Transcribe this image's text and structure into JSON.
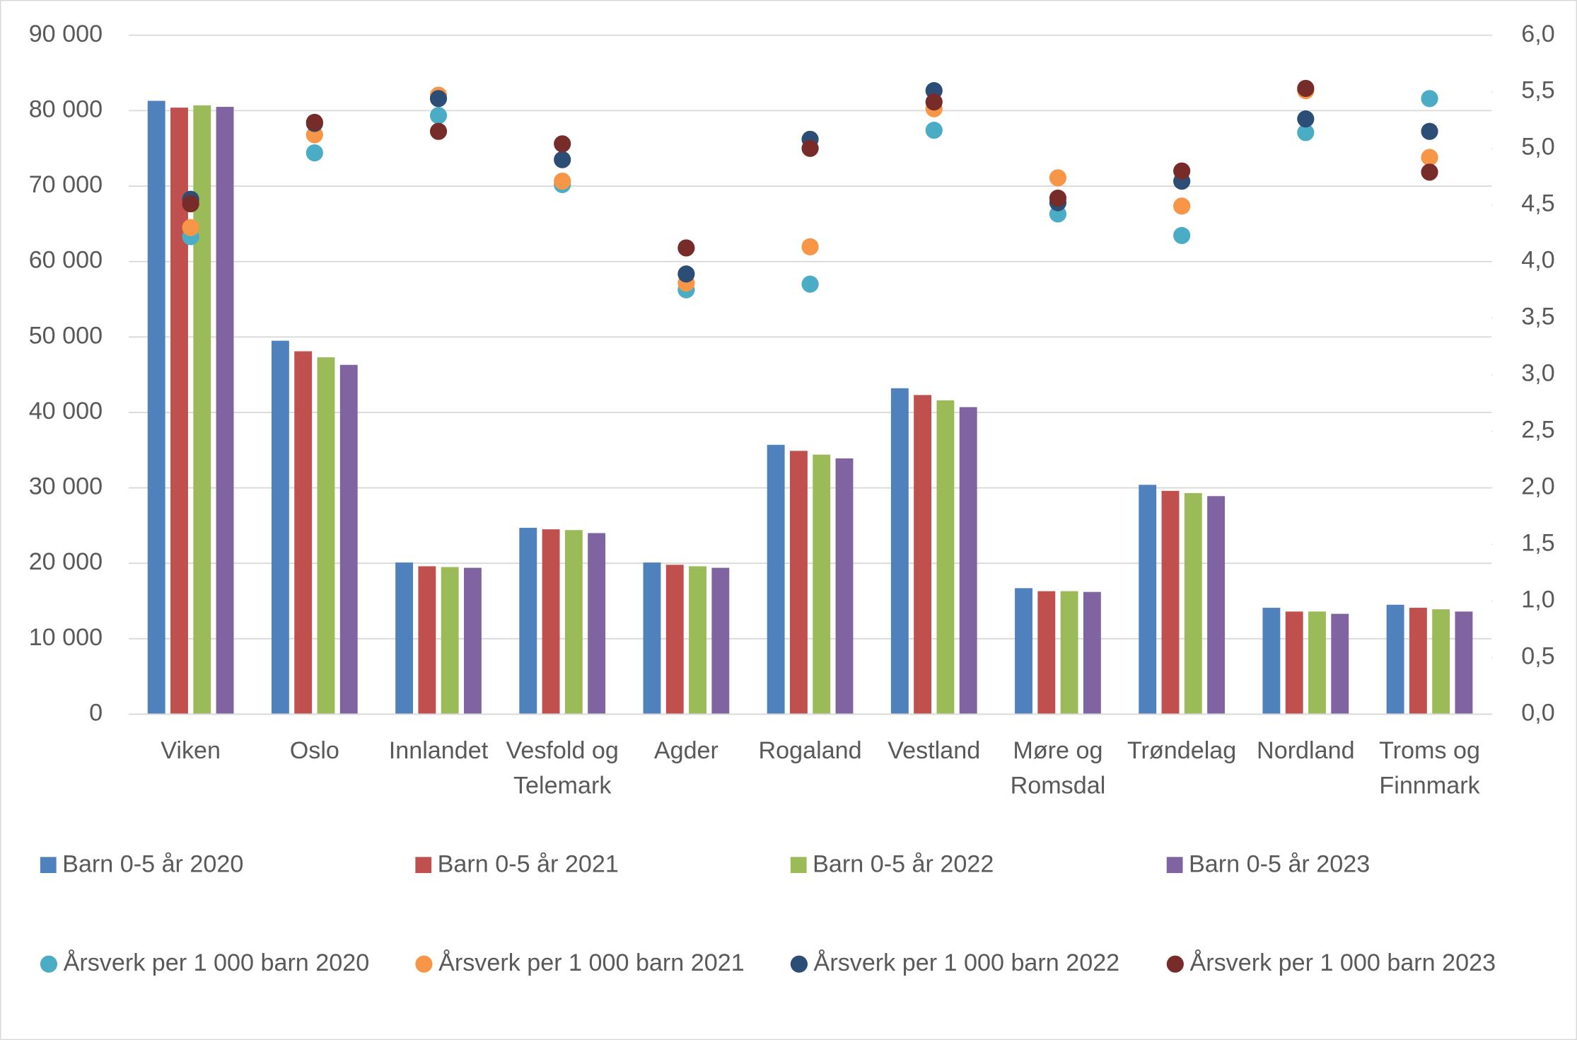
{
  "chart_data": {
    "type": "bar",
    "categories": [
      "Viken",
      "Oslo",
      "Innlandet",
      "Vesfold og Telemark",
      "Agder",
      "Rogaland",
      "Vestland",
      "Møre og Romsdal",
      "Trøndelag",
      "Nordland",
      "Troms og Finnmark"
    ],
    "series": [
      {
        "name": "Barn 0-5 år 2020",
        "color": "#4f81bd",
        "values": [
          81300,
          49500,
          20100,
          24700,
          20100,
          35700,
          43200,
          16700,
          30400,
          14100,
          14500
        ]
      },
      {
        "name": "Barn 0-5 år 2021",
        "color": "#c0504d",
        "values": [
          80400,
          48100,
          19600,
          24500,
          19800,
          34900,
          42300,
          16300,
          29600,
          13600,
          14100
        ]
      },
      {
        "name": "Barn 0-5 år 2022",
        "color": "#9bbb59",
        "values": [
          80700,
          47300,
          19500,
          24400,
          19600,
          34400,
          41600,
          16300,
          29300,
          13600,
          13900
        ]
      },
      {
        "name": "Barn 0-5 år 2023",
        "color": "#8064a2",
        "values": [
          80500,
          46300,
          19400,
          24000,
          19400,
          33900,
          40700,
          16200,
          28900,
          13300,
          13600
        ]
      },
      {
        "name": "Årsverk per 1 000 barn 2020",
        "color": "#4bacc6",
        "type": "scatter",
        "axis": "y2",
        "values": [
          4.22,
          4.96,
          5.29,
          4.68,
          3.75,
          3.8,
          5.16,
          4.42,
          4.23,
          5.14,
          5.44
        ]
      },
      {
        "name": "Årsverk per 1 000 barn 2021",
        "color": "#f79646",
        "type": "scatter",
        "axis": "y2",
        "values": [
          4.3,
          5.12,
          5.47,
          4.71,
          3.81,
          4.13,
          5.35,
          4.74,
          4.49,
          5.51,
          4.92
        ]
      },
      {
        "name": "Årsverk per 1 000 barn 2022",
        "color": "#2c4d75",
        "type": "scatter",
        "axis": "y2",
        "values": [
          4.55,
          5.22,
          5.44,
          4.9,
          3.89,
          5.08,
          5.51,
          4.52,
          4.71,
          5.26,
          5.15
        ]
      },
      {
        "name": "Årsverk per 1 000 barn 2023",
        "color": "#772c2a",
        "type": "scatter",
        "axis": "y2",
        "values": [
          4.51,
          5.23,
          5.15,
          5.04,
          4.12,
          5.0,
          5.41,
          4.56,
          4.8,
          5.53,
          4.79
        ]
      }
    ],
    "ylim": [
      0,
      90000
    ],
    "yticks": [
      0,
      {
        "value": 10000,
        "label": "10 000"
      },
      {
        "value": 20000,
        "label": "20 000"
      },
      {
        "value": 30000,
        "label": "30 000"
      },
      {
        "value": 40000,
        "label": "40 000"
      },
      {
        "value": 50000,
        "label": "50 000"
      },
      {
        "value": 60000,
        "label": "60 000"
      },
      {
        "value": 70000,
        "label": "70 000"
      },
      {
        "value": 80000,
        "label": "80 000"
      },
      {
        "value": 90000,
        "label": "90 000"
      }
    ],
    "y2lim": [
      0,
      6
    ],
    "y2ticks": [
      {
        "value": 0,
        "label": "0,0"
      },
      {
        "value": 0.5,
        "label": "0,5"
      },
      {
        "value": 1,
        "label": "1,0"
      },
      {
        "value": 1.5,
        "label": "1,5"
      },
      {
        "value": 2,
        "label": "2,0"
      },
      {
        "value": 2.5,
        "label": "2,5"
      },
      {
        "value": 3,
        "label": "3,0"
      },
      {
        "value": 3.5,
        "label": "3,5"
      },
      {
        "value": 4,
        "label": "4,0"
      },
      {
        "value": 4.5,
        "label": "4,5"
      },
      {
        "value": 5,
        "label": "5,0"
      },
      {
        "value": 5.5,
        "label": "5,5"
      },
      {
        "value": 6,
        "label": "6,0"
      }
    ],
    "grid": true,
    "legend": "bottom"
  }
}
